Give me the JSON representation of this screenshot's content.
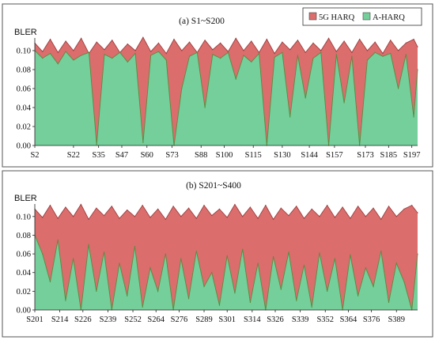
{
  "colors": {
    "harq5g": "#db6d6d",
    "harq5g_edge": "#9b3f3f",
    "aharq": "#74cf9b",
    "aharq_edge": "#5c8a3f"
  },
  "legend": {
    "items": [
      {
        "label": "5G HARQ",
        "color": "#db6d6d"
      },
      {
        "label": "A-HARQ",
        "color": "#74cf9b"
      }
    ],
    "placement": "top-right"
  },
  "chart_data": [
    {
      "type": "area",
      "title": "(a)  S1~S200",
      "ylabel": "BLER",
      "xlabel": "",
      "ylim": [
        0,
        0.11
      ],
      "yticks": [
        "0.00",
        "0.02",
        "0.04",
        "0.06",
        "0.08",
        "0.10"
      ],
      "yticks_values": [
        0,
        0.02,
        0.04,
        0.06,
        0.08,
        0.1
      ],
      "x_range": [
        2,
        200
      ],
      "xticks": [
        "S2",
        "S22",
        "S35",
        "S47",
        "S60",
        "S73",
        "S88",
        "S100",
        "S115",
        "S130",
        "S144",
        "S157",
        "S173",
        "S185",
        "S197"
      ],
      "xticks_values": [
        2,
        22,
        35,
        47,
        60,
        73,
        88,
        100,
        115,
        130,
        144,
        157,
        173,
        185,
        197
      ],
      "series": [
        {
          "name": "5G HARQ",
          "x": [
            2,
            6,
            10,
            14,
            18,
            22,
            26,
            30,
            34,
            38,
            42,
            46,
            50,
            54,
            58,
            62,
            66,
            70,
            74,
            78,
            82,
            86,
            90,
            94,
            98,
            102,
            106,
            110,
            114,
            118,
            122,
            126,
            130,
            134,
            138,
            142,
            146,
            150,
            154,
            158,
            162,
            166,
            170,
            174,
            178,
            182,
            186,
            190,
            194,
            198,
            200
          ],
          "values": [
            0.108,
            0.099,
            0.112,
            0.098,
            0.11,
            0.1,
            0.113,
            0.097,
            0.109,
            0.101,
            0.111,
            0.098,
            0.107,
            0.1,
            0.114,
            0.099,
            0.108,
            0.097,
            0.112,
            0.1,
            0.109,
            0.098,
            0.111,
            0.101,
            0.108,
            0.099,
            0.113,
            0.1,
            0.11,
            0.098,
            0.112,
            0.097,
            0.109,
            0.101,
            0.111,
            0.098,
            0.108,
            0.1,
            0.113,
            0.099,
            0.11,
            0.098,
            0.112,
            0.1,
            0.109,
            0.097,
            0.111,
            0.1,
            0.108,
            0.112,
            0.104
          ]
        },
        {
          "name": "A-HARQ",
          "x": [
            2,
            6,
            10,
            14,
            18,
            22,
            26,
            30,
            34,
            38,
            42,
            46,
            50,
            54,
            58,
            62,
            66,
            70,
            74,
            78,
            82,
            86,
            90,
            94,
            98,
            102,
            106,
            110,
            114,
            118,
            122,
            126,
            130,
            134,
            138,
            142,
            146,
            150,
            154,
            158,
            162,
            166,
            170,
            174,
            178,
            182,
            186,
            190,
            194,
            198,
            200
          ],
          "values": [
            0.1,
            0.092,
            0.097,
            0.086,
            0.099,
            0.09,
            0.095,
            0.098,
            0.001,
            0.096,
            0.092,
            0.098,
            0.088,
            0.097,
            0.003,
            0.095,
            0.099,
            0.09,
            0.0,
            0.06,
            0.094,
            0.098,
            0.04,
            0.096,
            0.092,
            0.098,
            0.07,
            0.095,
            0.088,
            0.097,
            0.0,
            0.093,
            0.098,
            0.03,
            0.095,
            0.05,
            0.092,
            0.098,
            0.0,
            0.096,
            0.045,
            0.094,
            0.0,
            0.09,
            0.098,
            0.094,
            0.097,
            0.06,
            0.096,
            0.03,
            0.08
          ]
        }
      ],
      "grid": false
    },
    {
      "type": "area",
      "title": "(b)  S201~S400",
      "ylabel": "BLER",
      "xlabel": "",
      "ylim": [
        0,
        0.11
      ],
      "yticks": [
        "0.00",
        "0.02",
        "0.04",
        "0.06",
        "0.08",
        "0.10"
      ],
      "yticks_values": [
        0,
        0.02,
        0.04,
        0.06,
        0.08,
        0.1
      ],
      "x_range": [
        201,
        400
      ],
      "xticks": [
        "S201",
        "S214",
        "S226",
        "S239",
        "S252",
        "S264",
        "S276",
        "S289",
        "S301",
        "S314",
        "S326",
        "S339",
        "S352",
        "S364",
        "S376",
        "S389"
      ],
      "xticks_values": [
        201,
        214,
        226,
        239,
        252,
        264,
        276,
        289,
        301,
        314,
        326,
        339,
        352,
        364,
        376,
        389
      ],
      "series": [
        {
          "name": "5G HARQ",
          "x": [
            201,
            205,
            209,
            213,
            217,
            221,
            225,
            229,
            233,
            237,
            241,
            245,
            249,
            253,
            257,
            261,
            265,
            269,
            273,
            277,
            281,
            285,
            289,
            293,
            297,
            301,
            305,
            309,
            313,
            317,
            321,
            325,
            329,
            333,
            337,
            341,
            345,
            349,
            353,
            357,
            361,
            365,
            369,
            373,
            377,
            381,
            385,
            389,
            393,
            397,
            400
          ],
          "values": [
            0.108,
            0.099,
            0.112,
            0.098,
            0.11,
            0.1,
            0.113,
            0.097,
            0.109,
            0.101,
            0.111,
            0.098,
            0.107,
            0.1,
            0.112,
            0.099,
            0.108,
            0.097,
            0.111,
            0.1,
            0.109,
            0.098,
            0.112,
            0.101,
            0.108,
            0.099,
            0.113,
            0.1,
            0.11,
            0.098,
            0.112,
            0.097,
            0.109,
            0.101,
            0.111,
            0.098,
            0.108,
            0.1,
            0.112,
            0.099,
            0.11,
            0.098,
            0.111,
            0.1,
            0.109,
            0.097,
            0.111,
            0.1,
            0.108,
            0.112,
            0.104
          ]
        },
        {
          "name": "A-HARQ",
          "x": [
            201,
            205,
            209,
            213,
            217,
            221,
            225,
            229,
            233,
            237,
            241,
            245,
            249,
            253,
            257,
            261,
            265,
            269,
            273,
            277,
            281,
            285,
            289,
            293,
            297,
            301,
            305,
            309,
            313,
            317,
            321,
            325,
            329,
            333,
            337,
            341,
            345,
            349,
            353,
            357,
            361,
            365,
            369,
            373,
            377,
            381,
            385,
            389,
            393,
            397,
            400
          ],
          "values": [
            0.08,
            0.06,
            0.03,
            0.075,
            0.01,
            0.055,
            0.0,
            0.07,
            0.02,
            0.062,
            0.0,
            0.05,
            0.015,
            0.068,
            0.003,
            0.045,
            0.02,
            0.06,
            0.0,
            0.055,
            0.012,
            0.063,
            0.025,
            0.04,
            0.005,
            0.058,
            0.018,
            0.065,
            0.008,
            0.05,
            0.0,
            0.057,
            0.022,
            0.062,
            0.01,
            0.048,
            0.003,
            0.061,
            0.02,
            0.055,
            0.0,
            0.059,
            0.015,
            0.045,
            0.025,
            0.063,
            0.008,
            0.05,
            0.03,
            0.0,
            0.06
          ]
        }
      ],
      "grid": false
    }
  ]
}
